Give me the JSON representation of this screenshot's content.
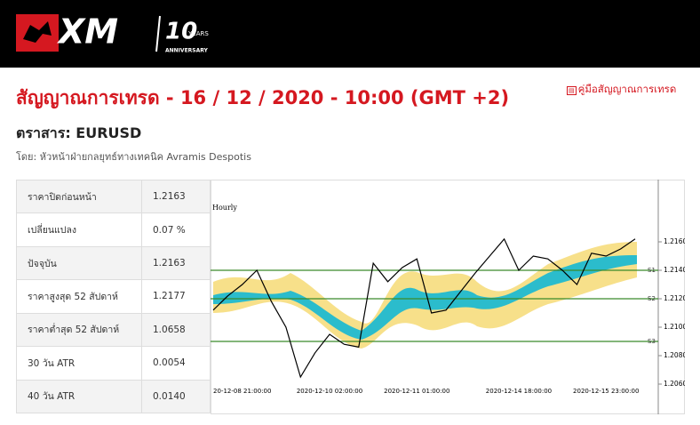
{
  "header": {
    "logo": "XM",
    "anniversary_number": "10",
    "anniversary_years": "YEARS",
    "anniversary_word": "ANNIVERSARY"
  },
  "title": "สัญญาณการเทรด - 16 / 12 / 2020 - 10:00 (GMT +2)",
  "guide_link": "คู่มือสัญญาณการเทรด",
  "instrument": "ตราสาร: EURUSD",
  "author": "โดย: หัวหน้าฝ่ายกลยุทธ์ทางเทคนิค Avramis Despotis",
  "table": {
    "rows": [
      [
        "ราคาปิดก่อนหน้า",
        "1.2163"
      ],
      [
        "เปลี่ยนแปลง",
        "0.07 %"
      ],
      [
        "ปัจจุบัน",
        "1.2163"
      ],
      [
        "ราคาสูงสุด 52 สัปดาห์",
        "1.2177"
      ],
      [
        "ราคาต่ำสุด 52 สัปดาห์",
        "1.0658"
      ],
      [
        "30 วัน ATR",
        "0.0054"
      ],
      [
        "40 วัน ATR",
        "0.0140"
      ]
    ]
  },
  "chart_data": {
    "type": "line",
    "title": "Hourly",
    "color": "#000000",
    "categories": [
      null,
      null,
      "20-12-08 21:00:00",
      null,
      null,
      null,
      null,
      null,
      "2020-12-10 02:00:00",
      null,
      null,
      null,
      null,
      null,
      "2020-12-11 01:00:00",
      null,
      null,
      null,
      null,
      null,
      null,
      "2020-12-14 18:00:00",
      null,
      null,
      null,
      null,
      null,
      "2020-12-15 23:00:00",
      null,
      null
    ],
    "values": [
      1.2112,
      1.2122,
      1.213,
      1.214,
      1.2118,
      1.21,
      1.2065,
      1.2082,
      1.2095,
      1.2088,
      1.2086,
      1.2145,
      1.2132,
      1.2142,
      1.2148,
      1.211,
      1.2112,
      1.2125,
      1.2138,
      1.215,
      1.2162,
      1.214,
      1.215,
      1.2148,
      1.214,
      1.213,
      1.2152,
      1.215,
      1.2155,
      1.2162
    ],
    "ylim": [
      1.206,
      1.218
    ],
    "yticks": [
      {
        "value": 1.206,
        "label": "1.2060"
      },
      {
        "value": 1.208,
        "label": "1.2080"
      },
      {
        "value": 1.21,
        "label": "1.2100"
      },
      {
        "value": 1.212,
        "label": "1.2120"
      },
      {
        "value": 1.214,
        "label": "1.2140"
      },
      {
        "value": 1.216,
        "label": "1.2160"
      }
    ],
    "levels": [
      {
        "name": "S1",
        "value": 1.214
      },
      {
        "name": "S2",
        "value": 1.212
      },
      {
        "name": "S3",
        "value": 1.209
      }
    ],
    "level_color": "#3a8a2a"
  }
}
